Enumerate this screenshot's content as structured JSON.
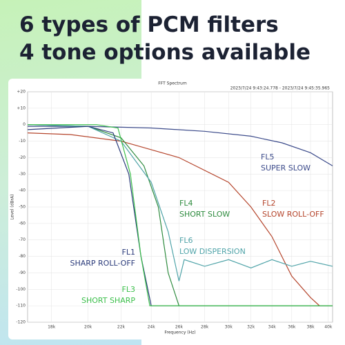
{
  "headline": [
    "6 types of PCM filters",
    "4 tone options available"
  ],
  "chart_data": {
    "type": "line",
    "title": "FFT Spectrum",
    "subtitle": "2023/7/24 9:43:24.778 - 2023/7/24 9:45:35.965",
    "x_label": "Frequency (Hz)",
    "y_label": "Level (dBrA)",
    "xlog": true,
    "grid": true,
    "xlim": [
      16800,
      40500
    ],
    "ylim": [
      -120,
      20
    ],
    "xticks": [
      {
        "value": 18000,
        "label": "18k"
      },
      {
        "value": 20000,
        "label": "20k"
      },
      {
        "value": 22000,
        "label": "22k"
      },
      {
        "value": 24000,
        "label": "24k"
      },
      {
        "value": 26000,
        "label": "26k"
      },
      {
        "value": 28000,
        "label": "28k"
      },
      {
        "value": 30000,
        "label": "30k"
      },
      {
        "value": 32000,
        "label": "32k"
      },
      {
        "value": 34000,
        "label": "34k"
      },
      {
        "value": 36000,
        "label": "36k"
      },
      {
        "value": 38000,
        "label": "38k"
      },
      {
        "value": 40000,
        "label": "40k"
      }
    ],
    "yticks": [
      {
        "value": 20,
        "label": "+20"
      },
      {
        "value": 10,
        "label": "+10"
      },
      0,
      -10,
      -20,
      -30,
      -40,
      -50,
      -60,
      -70,
      -80,
      -90,
      -100,
      -110,
      -120
    ],
    "series": [
      {
        "name": "FL5",
        "description": "SUPER SLOW",
        "color": "#3b4a8a",
        "x": [
          16800,
          20000,
          24000,
          28000,
          32000,
          35000,
          38000,
          40500
        ],
        "values": [
          -1,
          -1,
          -2,
          -4,
          -7,
          -11,
          -17,
          -25
        ]
      },
      {
        "name": "FL2",
        "description": "SLOW ROLL-OFF",
        "color": "#b5452c",
        "x": [
          16800,
          19000,
          22000,
          26000,
          30000,
          32000,
          34000,
          36000,
          38000,
          39000,
          40500
        ],
        "values": [
          -5,
          -6,
          -10,
          -20,
          -35,
          -50,
          -68,
          -92,
          -105,
          -110,
          -110
        ]
      },
      {
        "name": "FL4",
        "description": "SHORT SLOW",
        "color": "#2e8b3e",
        "x": [
          16800,
          20000,
          22000,
          23500,
          24500,
          25200,
          26000,
          40500
        ],
        "values": [
          0,
          -1,
          -8,
          -25,
          -50,
          -90,
          -110,
          -110
        ]
      },
      {
        "name": "FL6",
        "description": "LOW DISPERSION",
        "color": "#4fa3a8",
        "x": [
          16800,
          20000,
          22000,
          24000,
          25200,
          26000,
          26400,
          28000,
          30000,
          32000,
          34000,
          36000,
          38000,
          40500
        ],
        "values": [
          0,
          -1,
          -10,
          -35,
          -65,
          -95,
          -82,
          -86,
          -82,
          -87,
          -82,
          -86,
          -83,
          -86
        ]
      },
      {
        "name": "FL1",
        "description": "SHARP ROLL-OFF",
        "color": "#2a3a7a",
        "x": [
          16800,
          20000,
          21500,
          22500,
          23300,
          24000,
          40500
        ],
        "values": [
          -3,
          -1,
          -5,
          -30,
          -80,
          -110,
          -110
        ]
      },
      {
        "name": "FL3",
        "description": "SHORT SHARP",
        "color": "#3bbf4a",
        "x": [
          16800,
          20500,
          21800,
          22600,
          23300,
          23900,
          40500
        ],
        "values": [
          0,
          0,
          -2,
          -30,
          -80,
          -110,
          -110
        ]
      }
    ]
  }
}
